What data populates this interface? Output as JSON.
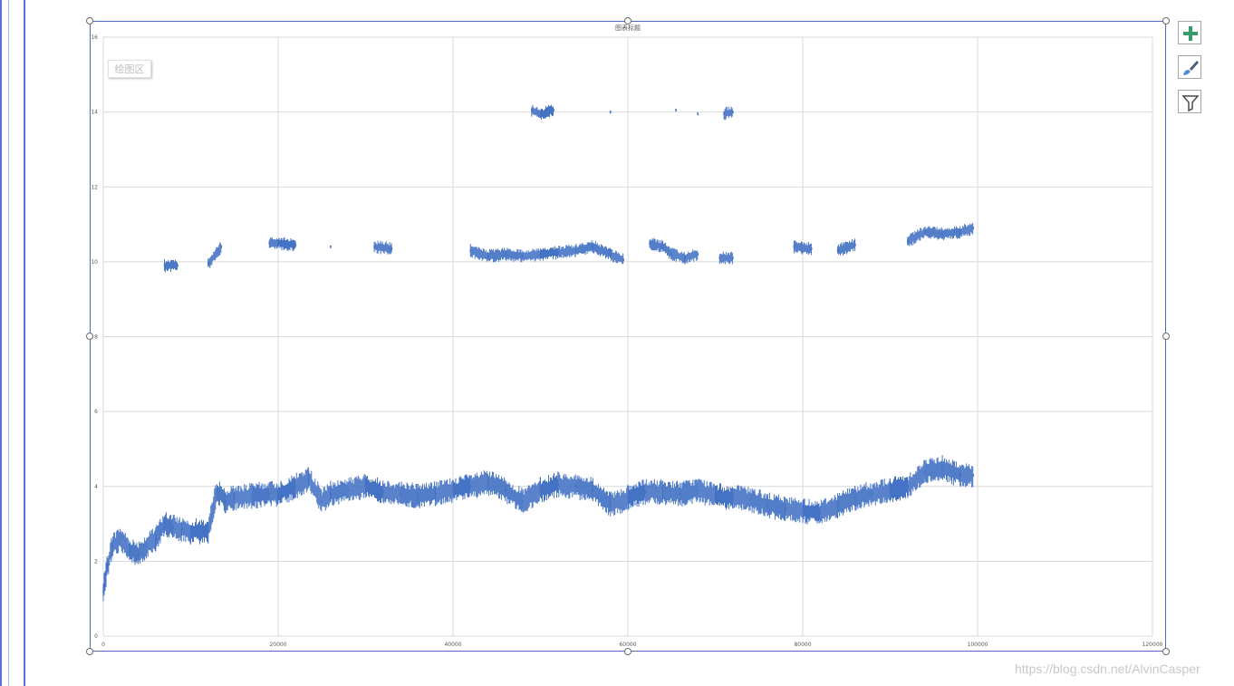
{
  "chart_data": {
    "type": "scatter",
    "title": "图表标题",
    "plot_area_label": "绘图区",
    "xlabel": "",
    "ylabel": "",
    "xlim": [
      0,
      120000
    ],
    "ylim": [
      0,
      16
    ],
    "x_ticks": [
      "0",
      "20000",
      "40000",
      "60000",
      "80000",
      "100000",
      "120000"
    ],
    "y_ticks": [
      "0",
      "2",
      "4",
      "6",
      "8",
      "10",
      "12",
      "14",
      "16"
    ],
    "grid": true,
    "legend": "none",
    "marker_color": "#4472c4",
    "series": [
      {
        "x": [
          0,
          500,
          1000,
          2000,
          3000,
          4000,
          5000,
          6000,
          7000,
          8000,
          9000,
          10000,
          12000,
          13000,
          14000,
          15000,
          17000,
          19000,
          20000,
          22000,
          23500,
          25000,
          26000,
          28000,
          30000,
          32000,
          34000,
          36000,
          38000,
          40000,
          42000,
          44000,
          46000,
          48000,
          50000,
          52000,
          54000,
          56000,
          58000,
          60000,
          62000,
          64000,
          66000,
          68000,
          70000,
          72000,
          74000,
          76000,
          78000,
          80000,
          82000,
          84000,
          86000,
          88000,
          90000,
          92000,
          94000,
          96000,
          98000,
          99500
        ],
        "y": [
          1.2,
          1.9,
          2.4,
          2.6,
          2.3,
          2.2,
          2.4,
          2.6,
          3.0,
          2.9,
          2.85,
          2.8,
          2.8,
          3.9,
          3.6,
          3.7,
          3.75,
          3.8,
          3.8,
          4.0,
          4.2,
          3.6,
          3.8,
          3.9,
          4.0,
          3.85,
          3.8,
          3.75,
          3.8,
          3.9,
          4.0,
          4.1,
          3.9,
          3.6,
          3.9,
          4.05,
          4.0,
          3.9,
          3.5,
          3.7,
          3.85,
          3.85,
          3.8,
          3.9,
          3.75,
          3.7,
          3.65,
          3.5,
          3.4,
          3.35,
          3.3,
          3.5,
          3.7,
          3.8,
          3.9,
          4.0,
          4.4,
          4.5,
          4.3,
          4.3
        ]
      },
      {
        "x": [
          7000,
          8500,
          12000,
          13500,
          19000,
          20000,
          22000,
          26000,
          31000,
          33000,
          42000,
          44000,
          46000,
          48000,
          50000,
          52000,
          54000,
          56000,
          58000,
          59500,
          62500,
          64000,
          65000,
          66500,
          68000,
          70500,
          72000,
          79000,
          81000,
          84000,
          86000,
          92000,
          94000,
          96000,
          98000,
          99500
        ],
        "y": [
          9.9,
          9.9,
          9.95,
          10.4,
          10.5,
          10.5,
          10.45,
          10.4,
          10.4,
          10.35,
          10.3,
          10.15,
          10.2,
          10.15,
          10.2,
          10.25,
          10.3,
          10.4,
          10.2,
          10.05,
          10.5,
          10.4,
          10.2,
          10.1,
          10.2,
          10.1,
          10.1,
          10.4,
          10.35,
          10.3,
          10.45,
          10.55,
          10.8,
          10.75,
          10.8,
          10.9
        ]
      },
      {
        "x": [
          49000,
          50000,
          51500,
          58000,
          65500,
          68000,
          71000,
          72000
        ],
        "y": [
          14.05,
          13.95,
          14.05,
          14.0,
          14.05,
          13.95,
          13.95,
          14.0
        ]
      }
    ]
  },
  "tools": {
    "add_element": "plus-icon",
    "styles": "paintbrush-icon",
    "filter": "funnel-icon"
  },
  "watermark": "https://blog.csdn.net/AlvinCasper"
}
